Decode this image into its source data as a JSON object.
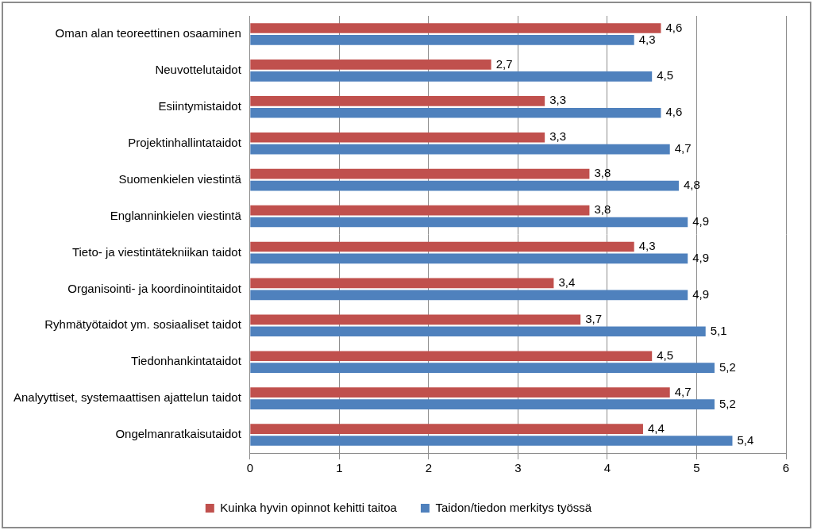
{
  "chart_data": {
    "type": "bar",
    "orientation": "horizontal",
    "categories": [
      "Oman alan teoreettinen osaaminen",
      "Neuvottelutaidot",
      "Esiintymistaidot",
      "Projektinhallintataidot",
      "Suomenkielen viestintä",
      "Englanninkielen viestintä",
      "Tieto- ja viestintätekniikan taidot",
      "Organisointi- ja koordinointitaidot",
      "Ryhmätyötaidot ym. sosiaaliset taidot",
      "Tiedonhankintataidot",
      "Analyyttiset, systemaattisen ajattelun taidot",
      "Ongelmanratkaisutaidot"
    ],
    "series": [
      {
        "name": "Kuinka hyvin opinnot kehitti taitoa",
        "color": "#c0504d",
        "values": [
          4.6,
          2.7,
          3.3,
          3.3,
          3.8,
          3.8,
          4.3,
          3.4,
          3.7,
          4.5,
          4.7,
          4.4
        ],
        "value_labels": [
          "4,6",
          "2,7",
          "3,3",
          "3,3",
          "3,8",
          "3,8",
          "4,3",
          "3,4",
          "3,7",
          "4,5",
          "4,7",
          "4,4"
        ]
      },
      {
        "name": "Taidon/tiedon merkitys työssä",
        "color": "#4f81bd",
        "values": [
          4.3,
          4.5,
          4.6,
          4.7,
          4.8,
          4.9,
          4.9,
          4.9,
          5.1,
          5.2,
          5.2,
          5.4
        ],
        "value_labels": [
          "4,3",
          "4,5",
          "4,6",
          "4,7",
          "4,8",
          "4,9",
          "4,9",
          "4,9",
          "5,1",
          "5,2",
          "5,2",
          "5,4"
        ]
      }
    ],
    "xlim": [
      0,
      6
    ],
    "xticks": [
      0,
      1,
      2,
      3,
      4,
      5,
      6
    ],
    "grid": true,
    "legend": "bottom",
    "data_labels": true
  }
}
